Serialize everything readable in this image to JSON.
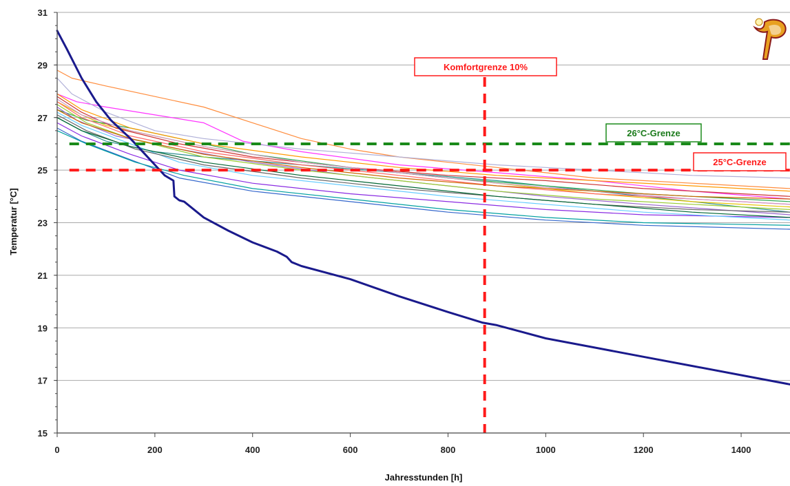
{
  "chart_data": {
    "type": "line",
    "xlabel": "Jahresstunden [h]",
    "ylabel": "Temperatur [°C]",
    "xlim": [
      0,
      1500
    ],
    "ylim": [
      15,
      31
    ],
    "x_ticks": [
      0,
      200,
      400,
      600,
      800,
      1000,
      1200,
      1400
    ],
    "y_ticks": [
      15,
      17,
      19,
      21,
      23,
      25,
      27,
      29,
      31
    ],
    "grid": "horizontal",
    "legend": "none",
    "series": [
      {
        "color": "#1a1a8c",
        "width": 3,
        "points": [
          [
            0,
            30.3
          ],
          [
            20,
            29.6
          ],
          [
            50,
            28.5
          ],
          [
            80,
            27.6
          ],
          [
            110,
            26.9
          ],
          [
            150,
            26.2
          ],
          [
            180,
            25.6
          ],
          [
            200,
            25.2
          ],
          [
            220,
            24.8
          ],
          [
            238,
            24.6
          ],
          [
            240,
            24.0
          ],
          [
            250,
            23.85
          ],
          [
            260,
            23.8
          ],
          [
            300,
            23.2
          ],
          [
            350,
            22.7
          ],
          [
            400,
            22.25
          ],
          [
            450,
            21.9
          ],
          [
            470,
            21.7
          ],
          [
            480,
            21.5
          ],
          [
            500,
            21.35
          ],
          [
            600,
            20.85
          ],
          [
            700,
            20.2
          ],
          [
            800,
            19.6
          ],
          [
            870,
            19.2
          ],
          [
            900,
            19.1
          ],
          [
            1000,
            18.6
          ],
          [
            1100,
            18.25
          ],
          [
            1200,
            17.9
          ],
          [
            1300,
            17.55
          ],
          [
            1400,
            17.2
          ],
          [
            1500,
            16.85
          ]
        ]
      },
      {
        "color": "#ff8c3c",
        "width": 1.2,
        "points": [
          [
            0,
            28.8
          ],
          [
            30,
            28.5
          ],
          [
            100,
            28.2
          ],
          [
            200,
            27.8
          ],
          [
            300,
            27.4
          ],
          [
            400,
            26.8
          ],
          [
            500,
            26.2
          ],
          [
            600,
            25.8
          ],
          [
            700,
            25.5
          ],
          [
            800,
            25.3
          ],
          [
            900,
            25.1
          ],
          [
            1000,
            24.9
          ],
          [
            1100,
            24.7
          ],
          [
            1200,
            24.6
          ],
          [
            1300,
            24.5
          ],
          [
            1400,
            24.4
          ],
          [
            1500,
            24.3
          ]
        ]
      },
      {
        "color": "#ff33ff",
        "width": 1.2,
        "points": [
          [
            0,
            27.9
          ],
          [
            40,
            27.6
          ],
          [
            100,
            27.4
          ],
          [
            200,
            27.1
          ],
          [
            300,
            26.8
          ],
          [
            380,
            26.1
          ],
          [
            500,
            25.7
          ],
          [
            700,
            25.2
          ],
          [
            900,
            24.9
          ],
          [
            1100,
            24.6
          ],
          [
            1300,
            24.2
          ],
          [
            1500,
            23.9
          ]
        ]
      },
      {
        "color": "#b0b0d8",
        "width": 1.2,
        "points": [
          [
            0,
            28.5
          ],
          [
            30,
            27.9
          ],
          [
            100,
            27.2
          ],
          [
            200,
            26.5
          ],
          [
            300,
            26.2
          ],
          [
            500,
            25.8
          ],
          [
            700,
            25.5
          ],
          [
            900,
            25.2
          ],
          [
            1100,
            25.0
          ],
          [
            1300,
            24.8
          ],
          [
            1500,
            24.7
          ]
        ]
      },
      {
        "color": "#2b8f8f",
        "width": 1.2,
        "points": [
          [
            0,
            27.0
          ],
          [
            50,
            26.5
          ],
          [
            100,
            26.1
          ],
          [
            200,
            25.7
          ],
          [
            300,
            25.5
          ],
          [
            500,
            25.2
          ],
          [
            700,
            24.9
          ],
          [
            900,
            24.6
          ],
          [
            1100,
            24.2
          ],
          [
            1300,
            23.8
          ],
          [
            1500,
            23.4
          ]
        ]
      },
      {
        "color": "#e6c200",
        "width": 1.2,
        "points": [
          [
            0,
            27.6
          ],
          [
            50,
            27.1
          ],
          [
            100,
            26.7
          ],
          [
            200,
            26.3
          ],
          [
            300,
            25.9
          ],
          [
            500,
            25.3
          ],
          [
            700,
            24.9
          ],
          [
            900,
            24.5
          ],
          [
            1100,
            24.1
          ],
          [
            1300,
            23.8
          ],
          [
            1500,
            23.6
          ]
        ]
      },
      {
        "color": "#33aa55",
        "width": 1.2,
        "points": [
          [
            0,
            27.3
          ],
          [
            60,
            26.9
          ],
          [
            150,
            26.6
          ],
          [
            250,
            26.2
          ],
          [
            400,
            25.6
          ],
          [
            600,
            25.1
          ],
          [
            800,
            24.7
          ],
          [
            1000,
            24.4
          ],
          [
            1200,
            24.1
          ],
          [
            1500,
            23.8
          ]
        ]
      },
      {
        "color": "#cc3333",
        "width": 1.2,
        "points": [
          [
            0,
            27.8
          ],
          [
            50,
            27.2
          ],
          [
            120,
            26.6
          ],
          [
            250,
            26.0
          ],
          [
            400,
            25.5
          ],
          [
            600,
            25.1
          ],
          [
            800,
            24.8
          ],
          [
            1000,
            24.6
          ],
          [
            1200,
            24.3
          ],
          [
            1500,
            24.0
          ]
        ]
      },
      {
        "color": "#8a2be2",
        "width": 1.2,
        "points": [
          [
            0,
            26.8
          ],
          [
            50,
            26.3
          ],
          [
            150,
            25.6
          ],
          [
            250,
            25.0
          ],
          [
            400,
            24.5
          ],
          [
            600,
            24.1
          ],
          [
            800,
            23.8
          ],
          [
            1000,
            23.5
          ],
          [
            1200,
            23.3
          ],
          [
            1500,
            23.2
          ]
        ]
      },
      {
        "color": "#66ccff",
        "width": 1.2,
        "points": [
          [
            0,
            27.2
          ],
          [
            50,
            26.7
          ],
          [
            150,
            26.0
          ],
          [
            250,
            25.3
          ],
          [
            400,
            24.8
          ],
          [
            600,
            24.4
          ],
          [
            800,
            24.0
          ],
          [
            1000,
            23.7
          ],
          [
            1200,
            23.4
          ],
          [
            1500,
            23.1
          ]
        ]
      },
      {
        "color": "#9966cc",
        "width": 1.2,
        "points": [
          [
            0,
            27.4
          ],
          [
            40,
            26.9
          ],
          [
            120,
            26.3
          ],
          [
            250,
            25.8
          ],
          [
            400,
            25.3
          ],
          [
            600,
            24.8
          ],
          [
            800,
            24.4
          ],
          [
            1000,
            24.0
          ],
          [
            1200,
            23.7
          ],
          [
            1500,
            23.3
          ]
        ]
      },
      {
        "color": "#99cc33",
        "width": 1.2,
        "points": [
          [
            0,
            27.5
          ],
          [
            60,
            26.8
          ],
          [
            150,
            26.2
          ],
          [
            300,
            25.5
          ],
          [
            500,
            25.0
          ],
          [
            700,
            24.6
          ],
          [
            900,
            24.2
          ],
          [
            1100,
            23.9
          ],
          [
            1300,
            23.7
          ],
          [
            1500,
            23.5
          ]
        ]
      },
      {
        "color": "#ff9900",
        "width": 1.2,
        "points": [
          [
            0,
            27.9
          ],
          [
            50,
            27.3
          ],
          [
            150,
            26.6
          ],
          [
            300,
            26.0
          ],
          [
            500,
            25.5
          ],
          [
            700,
            25.1
          ],
          [
            900,
            24.8
          ],
          [
            1100,
            24.6
          ],
          [
            1300,
            24.4
          ],
          [
            1500,
            24.2
          ]
        ]
      },
      {
        "color": "#3366cc",
        "width": 1.2,
        "points": [
          [
            0,
            26.6
          ],
          [
            50,
            26.1
          ],
          [
            150,
            25.4
          ],
          [
            250,
            24.7
          ],
          [
            400,
            24.2
          ],
          [
            600,
            23.8
          ],
          [
            800,
            23.4
          ],
          [
            1000,
            23.1
          ],
          [
            1200,
            22.9
          ],
          [
            1500,
            22.75
          ]
        ]
      },
      {
        "color": "#00a0a0",
        "width": 1.2,
        "points": [
          [
            0,
            26.5
          ],
          [
            60,
            26.0
          ],
          [
            160,
            25.3
          ],
          [
            260,
            24.8
          ],
          [
            400,
            24.3
          ],
          [
            600,
            23.9
          ],
          [
            800,
            23.5
          ],
          [
            1000,
            23.2
          ],
          [
            1200,
            23.0
          ],
          [
            1500,
            22.9
          ]
        ]
      },
      {
        "color": "#ff6666",
        "width": 1.2,
        "points": [
          [
            0,
            27.6
          ],
          [
            50,
            27.0
          ],
          [
            150,
            26.3
          ],
          [
            300,
            25.7
          ],
          [
            500,
            25.2
          ],
          [
            700,
            24.8
          ],
          [
            900,
            24.4
          ],
          [
            1100,
            24.1
          ],
          [
            1300,
            23.9
          ],
          [
            1500,
            23.7
          ]
        ]
      },
      {
        "color": "#666666",
        "width": 1.2,
        "points": [
          [
            0,
            27.1
          ],
          [
            60,
            26.5
          ],
          [
            160,
            25.8
          ],
          [
            300,
            25.2
          ],
          [
            500,
            24.7
          ],
          [
            700,
            24.3
          ],
          [
            900,
            24.0
          ],
          [
            1100,
            23.7
          ],
          [
            1300,
            23.5
          ],
          [
            1500,
            23.4
          ]
        ]
      },
      {
        "color": "#cc99cc",
        "width": 1.2,
        "points": [
          [
            0,
            27.7
          ],
          [
            50,
            27.1
          ],
          [
            150,
            26.5
          ],
          [
            300,
            25.9
          ],
          [
            500,
            25.3
          ],
          [
            700,
            24.9
          ],
          [
            900,
            24.5
          ],
          [
            1100,
            24.2
          ],
          [
            1300,
            23.9
          ],
          [
            1500,
            23.7
          ]
        ]
      },
      {
        "color": "#006633",
        "width": 1.2,
        "points": [
          [
            0,
            27.0
          ],
          [
            50,
            26.5
          ],
          [
            150,
            25.9
          ],
          [
            300,
            25.3
          ],
          [
            500,
            24.8
          ],
          [
            700,
            24.4
          ],
          [
            900,
            24.0
          ],
          [
            1100,
            23.7
          ],
          [
            1300,
            23.4
          ],
          [
            1500,
            23.2
          ]
        ]
      },
      {
        "color": "#cc6600",
        "width": 1.2,
        "points": [
          [
            0,
            27.3
          ],
          [
            50,
            26.8
          ],
          [
            150,
            26.2
          ],
          [
            300,
            25.6
          ],
          [
            500,
            25.1
          ],
          [
            700,
            24.7
          ],
          [
            900,
            24.4
          ],
          [
            1100,
            24.2
          ],
          [
            1300,
            24.0
          ],
          [
            1500,
            23.9
          ]
        ]
      }
    ],
    "reference_lines": [
      {
        "orientation": "horizontal",
        "value": 26,
        "x_start": 25,
        "color": "#1a8a1a",
        "label": "26°C-Grenze"
      },
      {
        "orientation": "horizontal",
        "value": 25,
        "x_start": 25,
        "color": "#ff1a1a",
        "label": "25°C-Grenze"
      },
      {
        "orientation": "vertical",
        "value": 875,
        "color": "#ff1a1a",
        "label": "Komfortgrenze 10%"
      }
    ]
  },
  "colors": {
    "grid": "#a8a8a8",
    "axis": "#444444"
  },
  "logo": {
    "icon": "stylized-p-logo-icon"
  }
}
